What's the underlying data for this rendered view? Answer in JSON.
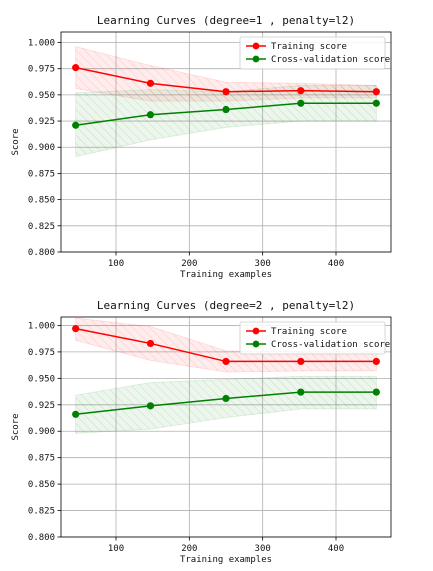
{
  "chart_data": [
    {
      "type": "line",
      "title": "Learning Curves (degree=1 , penalty=l2)",
      "xlabel": "Training examples",
      "ylabel": "Score",
      "xlim": [
        25,
        475
      ],
      "ylim": [
        0.8,
        1.01
      ],
      "xticks": [
        100,
        200,
        300,
        400
      ],
      "yticks": [
        0.8,
        0.825,
        0.85,
        0.875,
        0.9,
        0.925,
        0.95,
        0.975,
        1.0
      ],
      "xtick_labels": [
        "100",
        "200",
        "300",
        "400"
      ],
      "ytick_labels": [
        "0.800",
        "0.825",
        "0.850",
        "0.875",
        "0.900",
        "0.925",
        "0.950",
        "0.975",
        "1.000"
      ],
      "grid": true,
      "legend_position": "top-right",
      "x": [
        45,
        147,
        250,
        352,
        455
      ],
      "series": [
        {
          "name": "Training score",
          "color": "#ff0000",
          "values": [
            0.976,
            0.961,
            0.953,
            0.954,
            0.953
          ],
          "band_upper": [
            0.996,
            0.978,
            0.962,
            0.961,
            0.959
          ],
          "band_lower": [
            0.956,
            0.944,
            0.944,
            0.947,
            0.947
          ]
        },
        {
          "name": "Cross-validation score",
          "color": "#008000",
          "values": [
            0.921,
            0.931,
            0.936,
            0.942,
            0.942
          ],
          "band_upper": [
            0.952,
            0.955,
            0.953,
            0.959,
            0.959
          ],
          "band_lower": [
            0.891,
            0.907,
            0.919,
            0.925,
            0.925
          ]
        }
      ]
    },
    {
      "type": "line",
      "title": "Learning Curves (degree=2 , penalty=l2)",
      "xlabel": "Training examples",
      "ylabel": "Score",
      "xlim": [
        25,
        475
      ],
      "ylim": [
        0.8,
        1.008
      ],
      "xticks": [
        100,
        200,
        300,
        400
      ],
      "yticks": [
        0.8,
        0.825,
        0.85,
        0.875,
        0.9,
        0.925,
        0.95,
        0.975,
        1.0
      ],
      "xtick_labels": [
        "100",
        "200",
        "300",
        "400"
      ],
      "ytick_labels": [
        "0.800",
        "0.825",
        "0.850",
        "0.875",
        "0.900",
        "0.925",
        "0.950",
        "0.975",
        "1.000"
      ],
      "grid": true,
      "legend_position": "top-right",
      "x": [
        45,
        147,
        250,
        352,
        455
      ],
      "series": [
        {
          "name": "Training score",
          "color": "#ff0000",
          "values": [
            0.997,
            0.983,
            0.966,
            0.966,
            0.966
          ],
          "band_upper": [
            1.007,
            0.999,
            0.976,
            0.975,
            0.975
          ],
          "band_lower": [
            0.986,
            0.967,
            0.956,
            0.957,
            0.957
          ]
        },
        {
          "name": "Cross-validation score",
          "color": "#008000",
          "values": [
            0.916,
            0.924,
            0.931,
            0.937,
            0.937
          ],
          "band_upper": [
            0.934,
            0.946,
            0.949,
            0.952,
            0.952
          ],
          "band_lower": [
            0.898,
            0.902,
            0.913,
            0.921,
            0.921
          ]
        }
      ]
    }
  ]
}
